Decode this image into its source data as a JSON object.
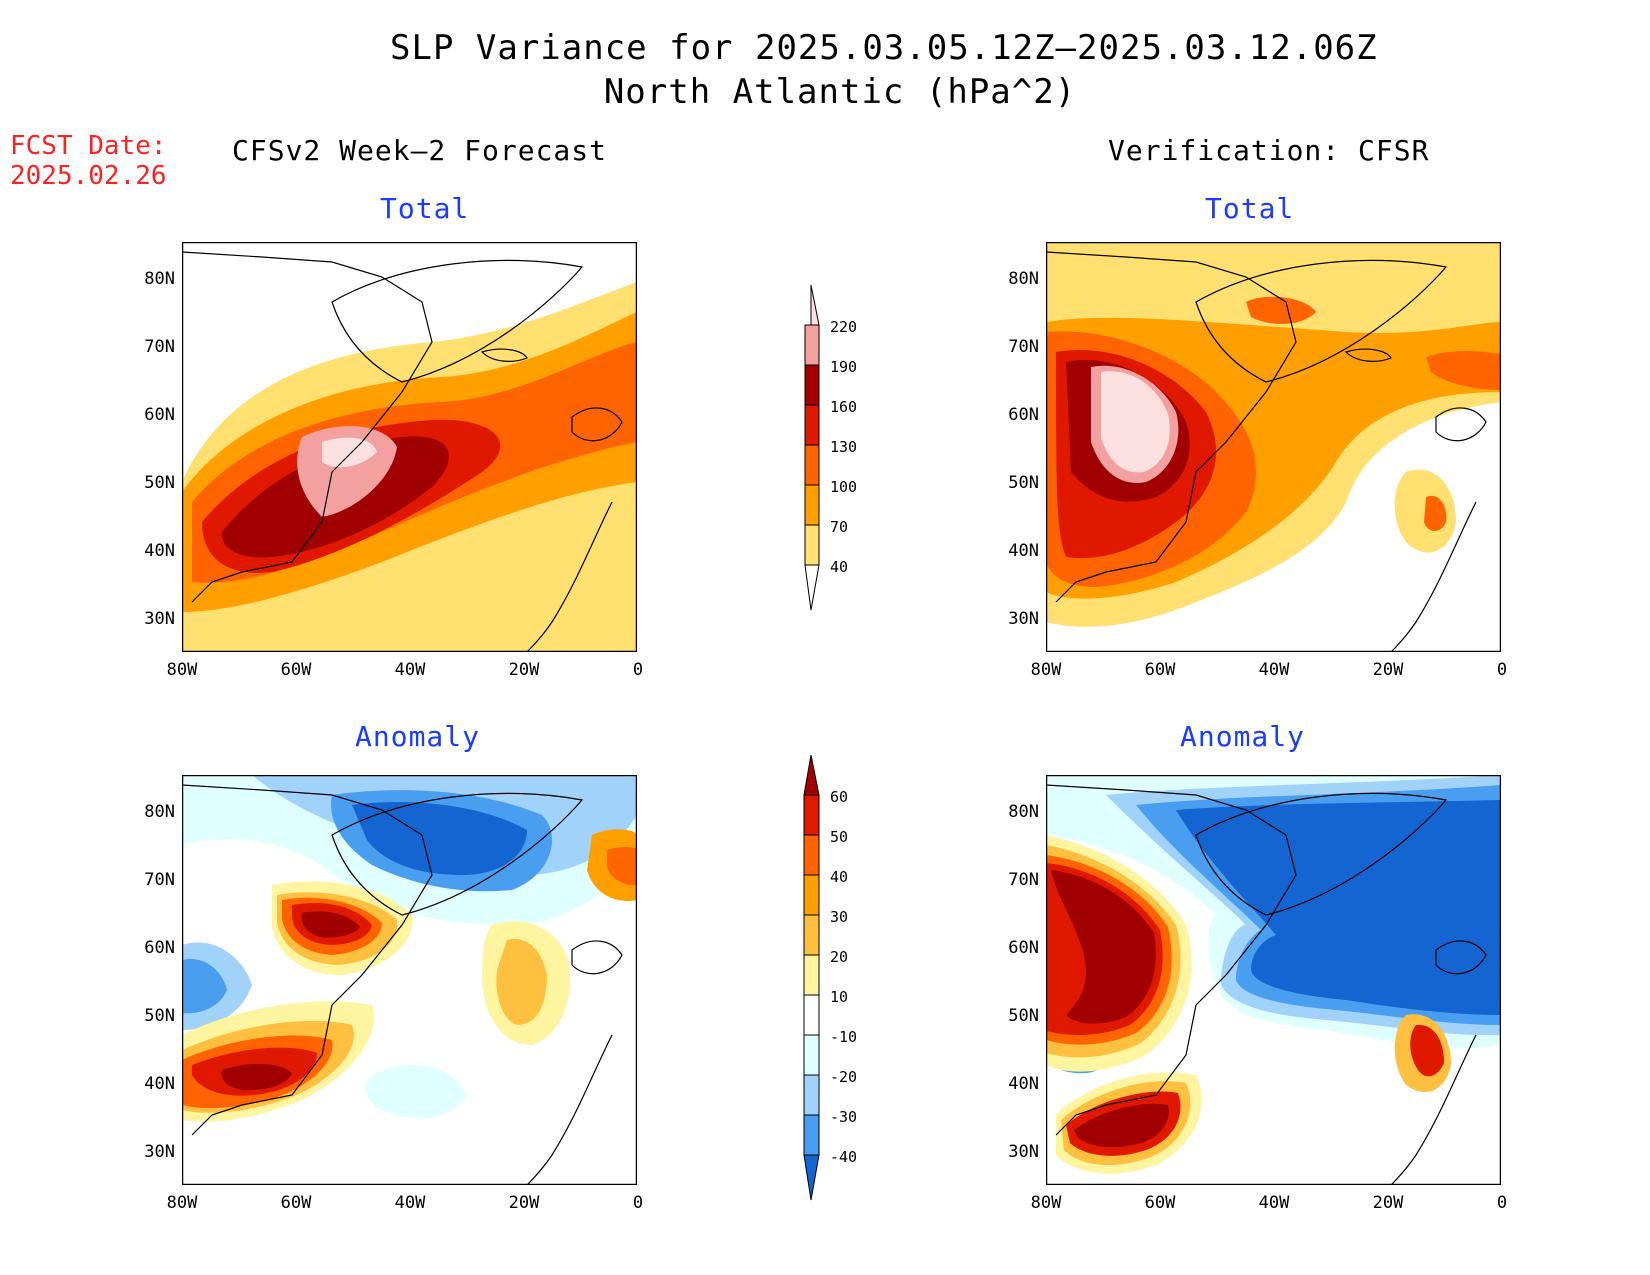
{
  "title_line1": "SLP Variance for 2025.03.05.12Z–2025.03.12.06Z",
  "title_line2": "North Atlantic (hPa^2)",
  "fcst_date_label": "FCST Date:",
  "fcst_date_value": "2025.02.26",
  "left_header": "CFSv2 Week–2 Forecast",
  "right_header": "Verification: CFSR",
  "panel_total_title": "Total",
  "panel_anomaly_title": "Anomaly",
  "lat_labels": [
    "80N",
    "70N",
    "60N",
    "50N",
    "40N",
    "30N"
  ],
  "lon_labels": [
    "80W",
    "60W",
    "40W",
    "20W",
    "0"
  ],
  "colorbar_total": {
    "levels": [
      "220",
      "190",
      "160",
      "130",
      "100",
      "70",
      "40"
    ],
    "colors": [
      "#fde0e0",
      "#f2a0a0",
      "#a00000",
      "#e01800",
      "#ff6400",
      "#ffa000",
      "#ffe070"
    ]
  },
  "colorbar_anomaly": {
    "levels": [
      "60",
      "50",
      "40",
      "30",
      "20",
      "10",
      "-10",
      "-20",
      "-30",
      "-40"
    ],
    "colors": [
      "#a00000",
      "#e01800",
      "#ff6400",
      "#ffa000",
      "#ffc040",
      "#fff5a0",
      "#ffffff",
      "#e0ffff",
      "#a0d2fa",
      "#4a9ef0",
      "#1464d2"
    ]
  },
  "legend_colors": {
    "land_outline": "#000000",
    "label_blue": "#1a3cff",
    "label_red": "#ff2020"
  }
}
